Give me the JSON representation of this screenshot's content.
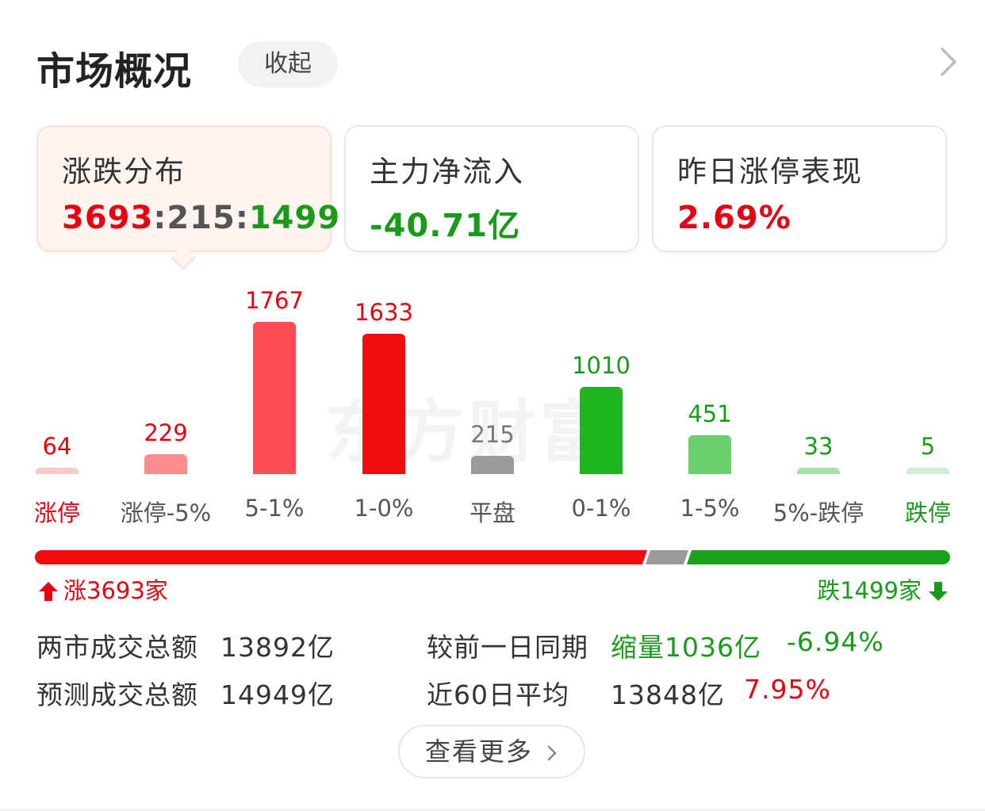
{
  "header": {
    "title": "市场概况",
    "collapse_label": "收起",
    "chevron": "chevron-right-icon"
  },
  "cards": [
    {
      "title": "涨跌分布",
      "up": "3693",
      "sep1": ":",
      "flat": "215",
      "sep2": ":",
      "down": "1499"
    },
    {
      "title": "主力净流入",
      "value": "-40.71亿"
    },
    {
      "title": "昨日涨停表现",
      "value": "2.69%"
    }
  ],
  "watermark": "东方财富",
  "chart_data": {
    "type": "bar",
    "categories": [
      "涨停",
      "涨停-5%",
      "5-1%",
      "1-0%",
      "平盘",
      "0-1%",
      "1-5%",
      "5%-跌停",
      "跌停"
    ],
    "values": [
      64,
      229,
      1767,
      1633,
      215,
      1010,
      451,
      33,
      5
    ],
    "colors": [
      "#ffc7c7",
      "#ff8f8f",
      "#ff4d58",
      "#f20d0d",
      "#9b9b9b",
      "#1fb51f",
      "#6bcf6b",
      "#a8e0a8",
      "#cfeecf"
    ],
    "value_colors": [
      "#e60012",
      "#e60012",
      "#e60012",
      "#e60012",
      "#777777",
      "#1a9a1a",
      "#1a9a1a",
      "#1a9a1a",
      "#1a9a1a"
    ],
    "label_colors": [
      "#e60012",
      "#555555",
      "#555555",
      "#555555",
      "#555555",
      "#555555",
      "#555555",
      "#555555",
      "#1a9a1a"
    ]
  },
  "breadth": {
    "up_label": "涨3693家",
    "down_label": "跌1499家",
    "up_count": 3693,
    "flat_count": 215,
    "down_count": 1499,
    "up_color": "#f20d0d",
    "flat_color": "#9b9b9b",
    "down_color": "#1aa31a"
  },
  "stats": {
    "total_label": "两市成交总额",
    "total_value": "13892亿",
    "forecast_label": "预测成交总额",
    "forecast_value": "14949亿",
    "compare_label": "较前一日同期",
    "compare_value": "缩量1036亿",
    "compare_pct": "-6.94%",
    "avg_label": "近60日平均",
    "avg_value": "13848亿",
    "avg_pct": "7.95%"
  },
  "more_label": "查看更多",
  "colors": {
    "up": "#e60012",
    "down": "#1a9a1a",
    "flat": "#555555"
  }
}
